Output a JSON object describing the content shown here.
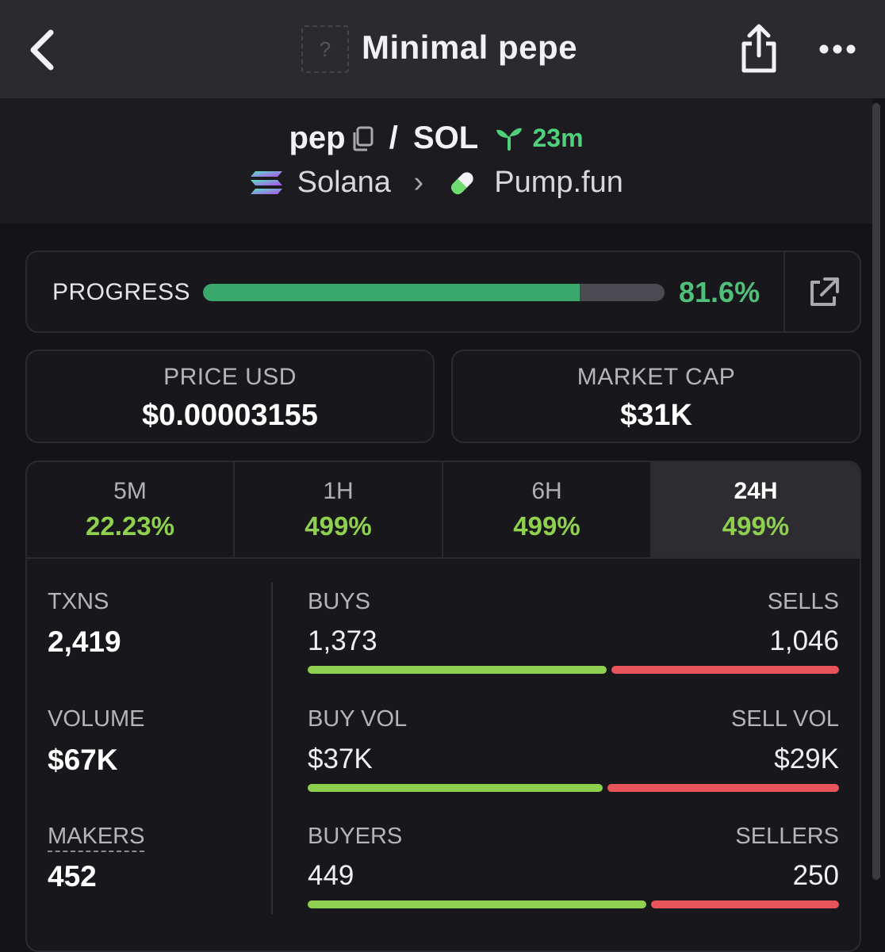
{
  "header": {
    "title": "Minimal pepe",
    "thumb_placeholder": "?",
    "icons": {
      "back": "chevron-left-icon",
      "share": "share-icon",
      "more": "more-dots-icon"
    }
  },
  "pair": {
    "base": "pep",
    "separator": "/",
    "quote": "SOL",
    "age": "23m",
    "chain": "Solana",
    "chevron": "›",
    "dex": "Pump.fun"
  },
  "progress": {
    "label": "PROGRESS",
    "value_text": "81.6%",
    "fraction": 0.816
  },
  "stats": {
    "price_label": "PRICE USD",
    "price_value": "$0.00003155",
    "mcap_label": "MARKET CAP",
    "mcap_value": "$31K"
  },
  "tabs": [
    {
      "label": "5M",
      "value": "22.23%",
      "active": false
    },
    {
      "label": "1H",
      "value": "499%",
      "active": false
    },
    {
      "label": "6H",
      "value": "499%",
      "active": false
    },
    {
      "label": "24H",
      "value": "499%",
      "active": true
    }
  ],
  "metrics": {
    "txns_label": "TXNS",
    "txns_value": "2,419",
    "volume_label": "VOLUME",
    "volume_value": "$67K",
    "makers_label": "MAKERS",
    "makers_value": "452",
    "rows": [
      {
        "left_label": "BUYS",
        "left_value": "1,373",
        "right_label": "SELLS",
        "right_value": "1,046",
        "buy": 1373,
        "sell": 1046
      },
      {
        "left_label": "BUY VOL",
        "left_value": "$37K",
        "right_label": "SELL VOL",
        "right_value": "$29K",
        "buy": 37,
        "sell": 29
      },
      {
        "left_label": "BUYERS",
        "left_value": "449",
        "right_label": "SELLERS",
        "right_value": "250",
        "buy": 449,
        "sell": 250
      }
    ]
  },
  "colors": {
    "green": "#8fcf4f",
    "red": "#e8545a",
    "progress_green": "#3aa86a",
    "age_green": "#4fd17c"
  }
}
